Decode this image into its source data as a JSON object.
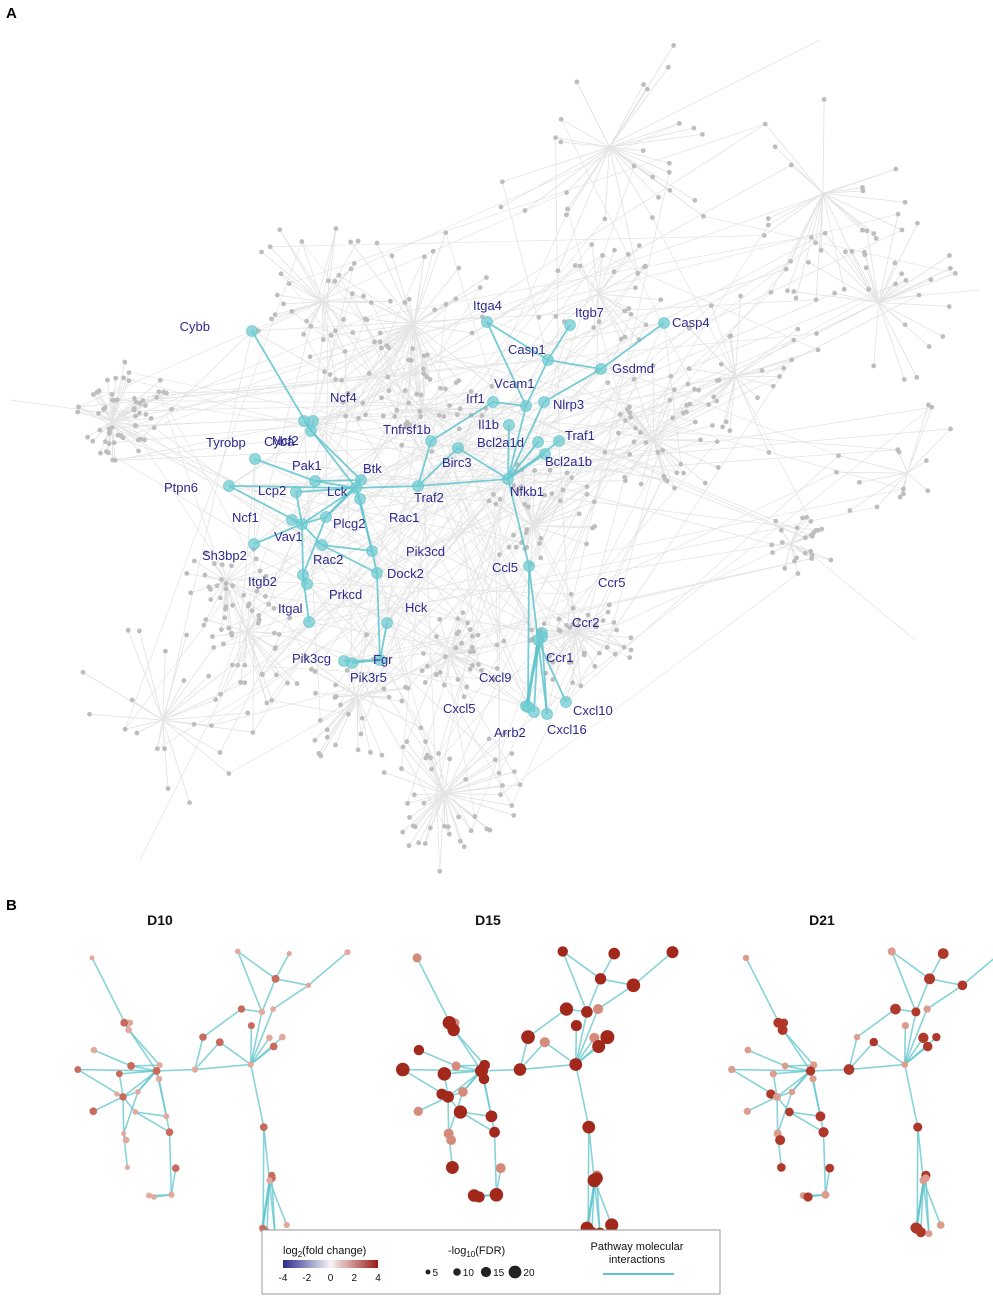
{
  "panels": {
    "a": "A",
    "b": "B"
  },
  "colors": {
    "pathway_edge": "#5fc4cc",
    "pathway_node": "#6fcbd2",
    "background_edge": "#e4e4e4",
    "background_node": "#bdbdbd",
    "label": "#2e2a8c",
    "fc_low": "#2b2c8f",
    "fc_mid": "#f5f5f5",
    "fc_high": "#9e1a12"
  },
  "network": {
    "genes": [
      "Cybb",
      "Itga4",
      "Itgb7",
      "Casp4",
      "Casp1",
      "Gsdmd",
      "Ncf4",
      "Vcam1",
      "Irf1",
      "Nlrp3",
      "Cyba",
      "Ncf2",
      "Il1b",
      "Tnfrsf1b",
      "Bcl2a1d",
      "Traf1",
      "Tyrobp",
      "Birc3",
      "Bcl2a1b",
      "Pak1",
      "Btk",
      "Ptpn6",
      "Lcp2",
      "Lck",
      "Traf2",
      "Nfkb1",
      "Rac1",
      "Ncf1",
      "Plcg2",
      "Vav1",
      "Pik3cd",
      "Rac2",
      "Sh3bp2",
      "Dock2",
      "Ccl5",
      "Itgb2",
      "Prkcd",
      "Ccr5",
      "Itgal",
      "Hck",
      "Ccr2",
      "Fgr",
      "Ccr1",
      "Pik3cg",
      "Pik3r5",
      "Cxcl9",
      "Cxcl5",
      "Cxcl10",
      "Arrb2",
      "Cxcl16"
    ]
  },
  "time_points": [
    "D10",
    "D15",
    "D21"
  ],
  "legend": {
    "fc_title_pre": "log",
    "fc_title_sub": "2",
    "fc_title_post": "(fold change)",
    "fc_ticks": [
      "-4",
      "-2",
      "0",
      "2",
      "4"
    ],
    "fdr_title_pre": "-log",
    "fdr_title_sub": "10",
    "fdr_title_post": "(FDR)",
    "fdr_sizes": [
      "5",
      "10",
      "15",
      "20"
    ],
    "pathway_line1": "Pathway molecular",
    "pathway_line2": "interactions"
  }
}
